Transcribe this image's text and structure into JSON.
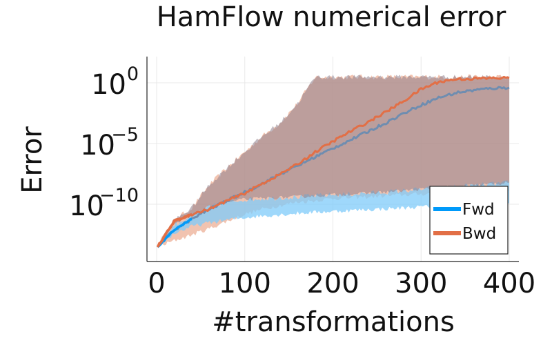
{
  "chart_data": {
    "type": "line",
    "title": "HamFlow numerical error",
    "xlabel": "#transformations",
    "ylabel": "Error",
    "xlim": [
      0,
      400
    ],
    "ylim": [
      1e-14,
      100.0
    ],
    "yscale": "log",
    "grid": true,
    "legend_position": "bottom-right",
    "xticks": [
      {
        "value": 0,
        "label": "0"
      },
      {
        "value": 100,
        "label": "100"
      },
      {
        "value": 200,
        "label": "200"
      },
      {
        "value": 300,
        "label": "300"
      },
      {
        "value": 400,
        "label": "400"
      }
    ],
    "yticks": [
      {
        "value": 1,
        "base": "10",
        "exp": "0"
      },
      {
        "value": 1e-05,
        "base": "10",
        "exp": "−5"
      },
      {
        "value": 1e-10,
        "base": "10",
        "exp": "−10"
      }
    ],
    "series": [
      {
        "name": "Fwd",
        "color": "#009AFA",
        "band_color": "#7FCBFA",
        "x": [
          1,
          20,
          40,
          60,
          80,
          100,
          120,
          140,
          160,
          180,
          200,
          220,
          240,
          260,
          280,
          300,
          320,
          340,
          360,
          380,
          400
        ],
        "y": [
          3e-14,
          8e-13,
          6e-12,
          4e-11,
          2e-10,
          1e-09,
          5e-09,
          3e-08,
          1.5e-07,
          8e-07,
          4e-06,
          2e-05,
          0.0001,
          0.0005,
          0.003,
          0.015,
          0.06,
          0.15,
          0.25,
          0.35,
          0.4
        ],
        "lower": [
          3e-14,
          4e-13,
          1.5e-12,
          3e-12,
          5e-12,
          8e-12,
          1.1e-11,
          1.4e-11,
          1.8e-11,
          2.2e-11,
          2.6e-11,
          3.1e-11,
          3.6e-11,
          4.2e-11,
          5e-11,
          6e-11,
          7e-11,
          8e-11,
          9e-11,
          1e-10,
          1.2e-10
        ],
        "upper": [
          4e-14,
          2e-12,
          1.2e-11,
          6e-11,
          1.5e-10,
          2.5e-10,
          3e-10,
          3.5e-10,
          4e-10,
          5e-10,
          6e-10,
          7e-10,
          8e-10,
          1e-09,
          1.3e-09,
          1.7e-09,
          2.2e-09,
          2.8e-09,
          3.5e-09,
          4.5e-09,
          6e-09
        ]
      },
      {
        "name": "Bwd",
        "color": "#E26F46",
        "band_color": "#EBA98F",
        "x": [
          1,
          20,
          40,
          60,
          80,
          100,
          120,
          140,
          160,
          180,
          200,
          220,
          240,
          260,
          280,
          300,
          320,
          340,
          360,
          380,
          400
        ],
        "y": [
          3e-14,
          4e-12,
          1.5e-11,
          4e-11,
          2e-10,
          8e-10,
          5e-09,
          3e-08,
          2e-07,
          2e-06,
          1.5e-05,
          0.0001,
          0.0006,
          0.004,
          0.03,
          0.3,
          1.2,
          2,
          2.2,
          2.4,
          2.5
        ],
        "lower": [
          3e-14,
          1e-13,
          3e-13,
          1e-12,
          4e-12,
          1.5e-11,
          4e-11,
          8e-11,
          1.5e-10,
          2e-10,
          3e-10,
          3.5e-10,
          4e-10,
          5e-10,
          6e-10,
          7e-10,
          8e-10,
          8e-10,
          9e-10,
          1e-09,
          1.2e-09
        ],
        "upper": [
          4e-14,
          5e-12,
          5e-11,
          4e-09,
          1e-07,
          2e-06,
          4e-05,
          0.0005,
          0.02,
          3,
          3,
          3,
          3,
          3,
          3,
          3,
          3,
          3,
          3,
          3,
          3
        ]
      }
    ]
  }
}
